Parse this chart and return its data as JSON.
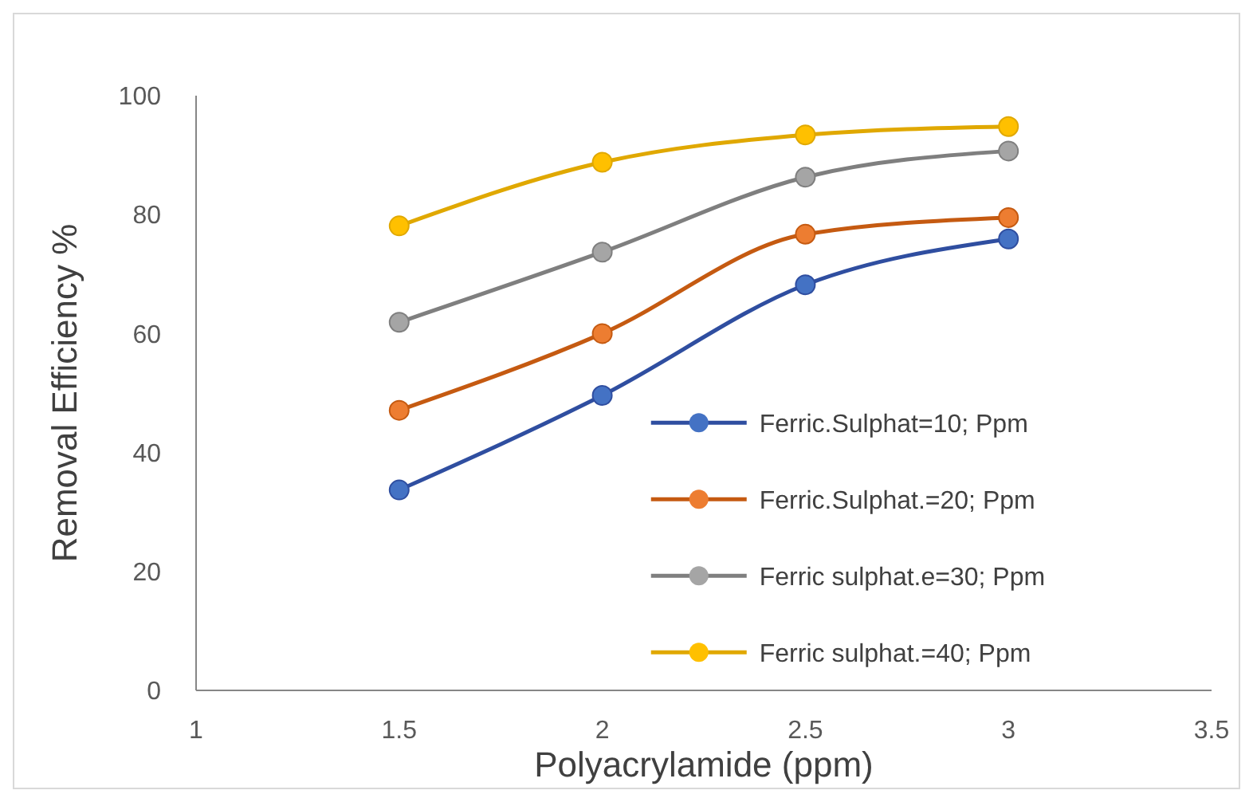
{
  "chart_data": {
    "type": "line",
    "xlabel": "Polyacrylamide (ppm)",
    "ylabel": "Removal Efficiency %",
    "x": [
      1.5,
      2,
      2.5,
      3
    ],
    "xlim": [
      1,
      3.5
    ],
    "xticks": [
      1,
      1.5,
      2,
      2.5,
      3,
      3.5
    ],
    "ylim": [
      0,
      100
    ],
    "yticks": [
      0,
      20,
      40,
      60,
      80,
      100
    ],
    "grid": false,
    "legend": "bottom right",
    "marker": "circle",
    "line_style": "solid",
    "series": [
      {
        "name": "Ferric.Sulphat=10; Ppm",
        "color": "#4472c4",
        "values": [
          33.7,
          49.6,
          68.2,
          75.9
        ]
      },
      {
        "name": "Ferric.Sulphat.=20; Ppm",
        "color": "#ed7d31",
        "values": [
          47.1,
          60,
          76.7,
          79.5
        ]
      },
      {
        "name": "Ferric sulphat.e=30; Ppm",
        "color": "#a5a5a5",
        "values": [
          61.9,
          73.7,
          86.3,
          90.7
        ]
      },
      {
        "name": "Ferric sulphat.=40; Ppm",
        "color": "#ffc000",
        "values": [
          78.1,
          88.8,
          93.4,
          94.8
        ]
      }
    ]
  }
}
